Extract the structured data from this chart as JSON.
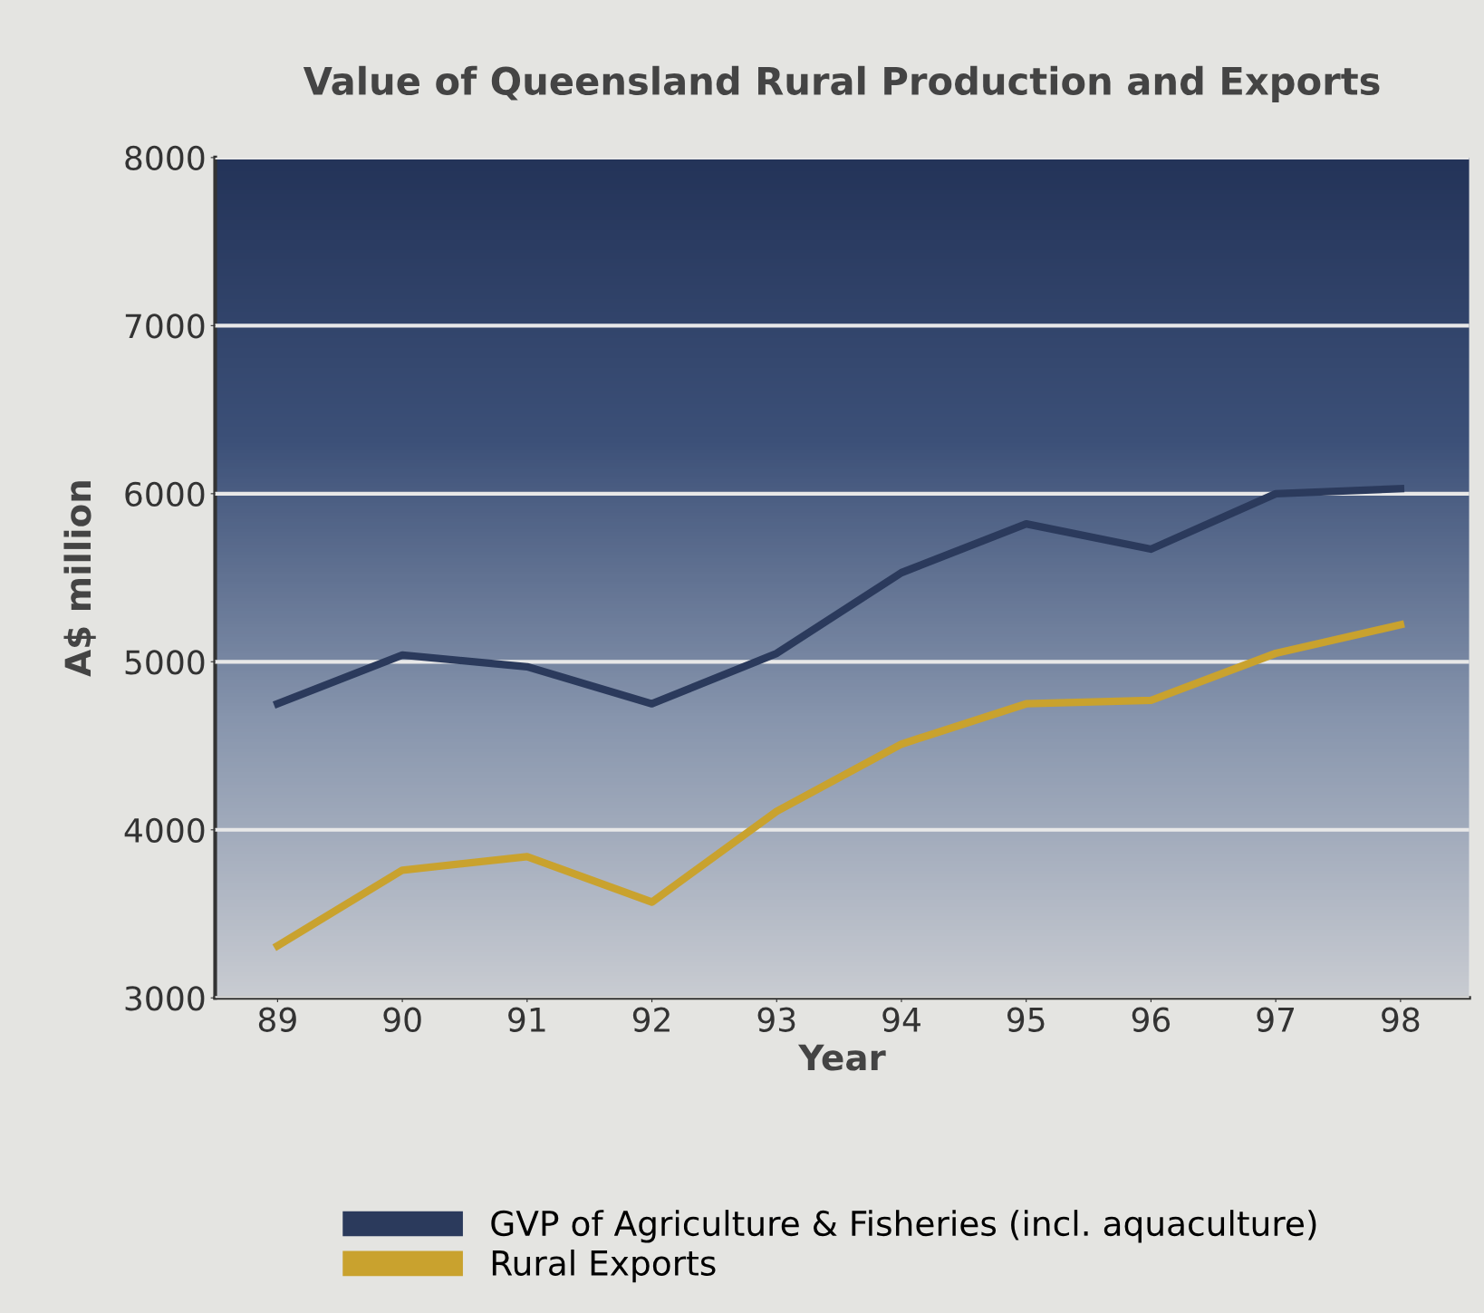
{
  "chart_data": {
    "type": "line",
    "title": "Value of Queensland Rural Production and Exports",
    "xlabel": "Year",
    "ylabel": "A$ million",
    "categories": [
      "89",
      "90",
      "91",
      "92",
      "93",
      "94",
      "95",
      "96",
      "97",
      "98"
    ],
    "series": [
      {
        "name": "GVP of Agriculture & Fisheries (incl. aquaculture)",
        "color": "#2b3a5c",
        "values": [
          4750,
          5040,
          4970,
          4750,
          5050,
          5530,
          5820,
          5670,
          6000,
          6030
        ]
      },
      {
        "name": "Rural Exports",
        "color": "#c9a22e",
        "values": [
          3310,
          3760,
          3840,
          3570,
          4110,
          4510,
          4750,
          4770,
          5050,
          5220
        ]
      }
    ],
    "ylim": [
      3000,
      8000
    ],
    "yticks": [
      3000,
      4000,
      5000,
      6000,
      7000,
      8000
    ],
    "grid": "y",
    "legend": "bottom",
    "marker": "none",
    "line_style": "solid"
  }
}
